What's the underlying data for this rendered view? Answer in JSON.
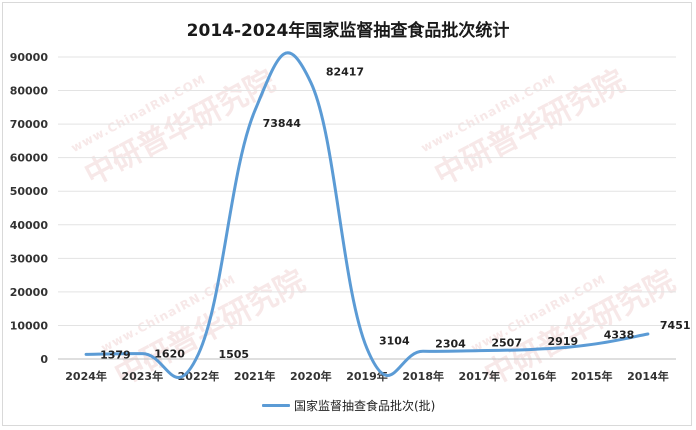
{
  "chart_data": {
    "type": "line",
    "title": "2014-2024年国家监督抽查食品批次统计",
    "categories": [
      "2024年",
      "2023年",
      "2022年",
      "2021年",
      "2020年",
      "2019年",
      "2018年",
      "2017年",
      "2016年",
      "2015年",
      "2014年"
    ],
    "series": [
      {
        "name": "国家监督抽查食品批次(批)",
        "values": [
          1379,
          1620,
          1505,
          73844,
          82417,
          3104,
          2304,
          2507,
          2919,
          4338,
          7451
        ],
        "color": "#5b9bd5"
      }
    ],
    "ylim": [
      0,
      90000
    ],
    "yticks": [
      0,
      10000,
      20000,
      30000,
      40000,
      50000,
      60000,
      70000,
      80000,
      90000
    ],
    "grid": true,
    "legend": "bottom",
    "xlabel": "",
    "ylabel": ""
  },
  "watermark": {
    "text": "中研普华研究院",
    "sub": "www.ChinaIRN.COM"
  }
}
